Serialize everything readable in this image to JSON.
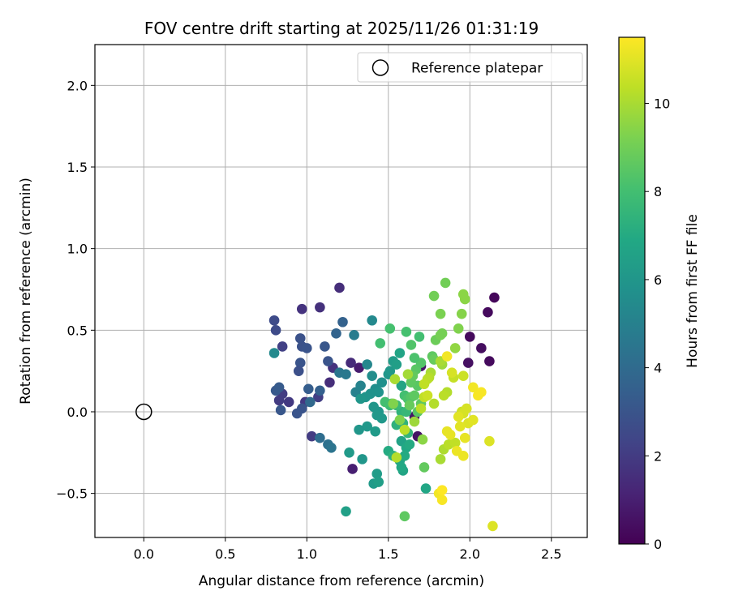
{
  "chart_data": {
    "type": "scatter",
    "title": "FOV centre drift starting at 2025/11/26 01:31:19",
    "xlabel": "Angular distance from reference (arcmin)",
    "ylabel": "Rotation from reference (arcmin)",
    "xlim": [
      -0.3,
      2.72
    ],
    "ylim": [
      -0.77,
      2.25
    ],
    "xticks": [
      0.0,
      0.5,
      1.0,
      1.5,
      2.0,
      2.5
    ],
    "xtick_labels": [
      "0.0",
      "0.5",
      "1.0",
      "1.5",
      "2.0",
      "2.5"
    ],
    "yticks": [
      -0.5,
      0.0,
      0.5,
      1.0,
      1.5,
      2.0
    ],
    "ytick_labels": [
      "−0.5",
      "0.0",
      "0.5",
      "1.0",
      "1.5",
      "2.0"
    ],
    "grid": true,
    "legend": {
      "position": "top-right",
      "entries": [
        "Reference platepar"
      ]
    },
    "reference_point": {
      "label": "Reference platepar",
      "x": 0.0,
      "y": 0.0
    },
    "colorbar": {
      "label": "Hours from first FF file",
      "colormap": "viridis",
      "range": [
        0,
        11.5
      ],
      "ticks": [
        0,
        2,
        4,
        6,
        8,
        10
      ],
      "tick_labels": [
        "0",
        "2",
        "4",
        "6",
        "8",
        "10"
      ]
    },
    "series": [
      {
        "name": "FOV centre",
        "points": [
          [
            2.15,
            0.7,
            0.2
          ],
          [
            2.11,
            0.61,
            0.3
          ],
          [
            2.12,
            0.31,
            0.3
          ],
          [
            2.07,
            0.39,
            0.4
          ],
          [
            2.0,
            0.46,
            0.3
          ],
          [
            1.99,
            0.3,
            0.5
          ],
          [
            1.7,
            0.28,
            0.6
          ],
          [
            1.68,
            -0.15,
            0.6
          ],
          [
            1.66,
            -0.03,
            0.7
          ],
          [
            1.32,
            0.27,
            0.9
          ],
          [
            1.28,
            -0.35,
            1.0
          ],
          [
            1.2,
            0.76,
            1.5
          ],
          [
            1.27,
            0.3,
            1.4
          ],
          [
            1.08,
            0.64,
            1.6
          ],
          [
            0.97,
            0.63,
            1.7
          ],
          [
            1.14,
            0.18,
            1.5
          ],
          [
            1.16,
            0.27,
            1.7
          ],
          [
            0.99,
            0.06,
            1.9
          ],
          [
            0.89,
            0.06,
            1.9
          ],
          [
            0.85,
            0.11,
            2.0
          ],
          [
            0.83,
            0.07,
            2.0
          ],
          [
            1.03,
            -0.15,
            2.0
          ],
          [
            1.07,
            0.09,
            2.1
          ],
          [
            0.85,
            0.4,
            2.2
          ],
          [
            0.8,
            0.56,
            2.6
          ],
          [
            0.81,
            0.5,
            2.6
          ],
          [
            0.96,
            0.45,
            2.9
          ],
          [
            0.97,
            0.4,
            2.9
          ],
          [
            1.0,
            0.39,
            3.0
          ],
          [
            1.11,
            0.4,
            3.1
          ],
          [
            0.96,
            0.3,
            3.0
          ],
          [
            0.95,
            0.25,
            2.8
          ],
          [
            1.13,
            0.31,
            3.0
          ],
          [
            0.94,
            -0.01,
            3.0
          ],
          [
            0.81,
            0.13,
            3.2
          ],
          [
            0.83,
            0.15,
            3.3
          ],
          [
            0.84,
            0.01,
            3.1
          ],
          [
            0.97,
            0.02,
            3.0
          ],
          [
            1.01,
            0.14,
            3.4
          ],
          [
            1.08,
            0.13,
            3.5
          ],
          [
            1.18,
            0.48,
            3.7
          ],
          [
            1.22,
            0.55,
            3.6
          ],
          [
            1.02,
            0.06,
            3.9
          ],
          [
            1.08,
            -0.16,
            4.1
          ],
          [
            1.13,
            -0.2,
            4.3
          ],
          [
            1.15,
            -0.22,
            4.4
          ],
          [
            1.2,
            0.24,
            4.5
          ],
          [
            1.24,
            0.23,
            4.6
          ],
          [
            1.29,
            0.47,
            4.8
          ],
          [
            1.3,
            0.12,
            5.0
          ],
          [
            1.33,
            0.16,
            5.1
          ],
          [
            1.37,
            0.29,
            5.3
          ],
          [
            1.4,
            0.56,
            5.4
          ],
          [
            0.8,
            0.36,
            5.4
          ],
          [
            1.4,
            0.22,
            5.6
          ],
          [
            1.42,
            0.14,
            5.6
          ],
          [
            1.39,
            0.11,
            5.8
          ],
          [
            1.44,
            0.12,
            5.8
          ],
          [
            1.46,
            0.18,
            5.7
          ],
          [
            1.36,
            0.09,
            5.9
          ],
          [
            1.33,
            0.08,
            6.0
          ],
          [
            1.41,
            0.03,
            6.0
          ],
          [
            1.44,
            0.0,
            6.0
          ],
          [
            1.46,
            -0.04,
            6.1
          ],
          [
            1.43,
            -0.02,
            6.1
          ],
          [
            1.37,
            -0.09,
            6.1
          ],
          [
            1.32,
            -0.11,
            6.0
          ],
          [
            1.34,
            -0.29,
            6.0
          ],
          [
            1.26,
            -0.25,
            6.2
          ],
          [
            1.42,
            -0.12,
            6.2
          ],
          [
            1.41,
            -0.44,
            6.2
          ],
          [
            1.43,
            -0.38,
            6.3
          ],
          [
            1.44,
            -0.43,
            6.4
          ],
          [
            1.24,
            -0.61,
            6.5
          ],
          [
            1.5,
            0.23,
            6.0
          ],
          [
            1.51,
            0.25,
            6.1
          ],
          [
            1.53,
            0.31,
            6.3
          ],
          [
            1.55,
            0.29,
            6.4
          ],
          [
            1.57,
            0.36,
            6.7
          ],
          [
            1.58,
            0.16,
            6.7
          ],
          [
            1.58,
            -0.18,
            6.6
          ],
          [
            1.59,
            -0.36,
            6.7
          ],
          [
            1.57,
            -0.3,
            6.8
          ],
          [
            1.61,
            -0.22,
            6.9
          ],
          [
            1.63,
            -0.2,
            7.0
          ],
          [
            1.6,
            -0.27,
            7.0
          ],
          [
            1.58,
            -0.34,
            6.9
          ],
          [
            1.73,
            -0.47,
            6.8
          ],
          [
            1.5,
            -0.24,
            7.0
          ],
          [
            1.53,
            -0.27,
            7.3
          ],
          [
            1.55,
            -0.08,
            7.3
          ],
          [
            1.59,
            -0.07,
            7.4
          ],
          [
            1.62,
            -0.13,
            7.5
          ],
          [
            1.58,
            0.0,
            7.4
          ],
          [
            1.61,
            0.0,
            7.6
          ],
          [
            1.55,
            0.04,
            7.7
          ],
          [
            1.51,
            0.04,
            7.8
          ],
          [
            1.48,
            0.06,
            8.0
          ],
          [
            1.52,
            0.05,
            8.0
          ],
          [
            1.6,
            0.1,
            8.0
          ],
          [
            1.62,
            0.08,
            8.2
          ],
          [
            1.64,
            0.09,
            8.4
          ],
          [
            1.66,
            0.1,
            8.6
          ],
          [
            1.68,
            0.0,
            8.5
          ],
          [
            1.7,
            0.05,
            8.6
          ],
          [
            1.68,
            0.16,
            8.5
          ],
          [
            1.67,
            0.26,
            8.5
          ],
          [
            1.7,
            0.3,
            8.4
          ],
          [
            1.66,
            0.33,
            8.2
          ],
          [
            1.64,
            0.41,
            8.3
          ],
          [
            1.61,
            0.49,
            8.1
          ],
          [
            1.51,
            0.51,
            8.1
          ],
          [
            1.69,
            0.46,
            8.0
          ],
          [
            1.45,
            0.42,
            8.0
          ],
          [
            1.64,
            0.18,
            8.6
          ],
          [
            1.65,
            0.22,
            8.7
          ],
          [
            1.63,
            0.04,
            8.8
          ],
          [
            1.72,
            -0.34,
            8.7
          ],
          [
            1.6,
            -0.64,
            8.6
          ],
          [
            1.77,
            0.34,
            8.6
          ],
          [
            1.78,
            0.32,
            8.8
          ],
          [
            1.79,
            0.44,
            8.9
          ],
          [
            1.82,
            0.47,
            9.1
          ],
          [
            1.83,
            0.48,
            9.1
          ],
          [
            1.78,
            0.71,
            9.0
          ],
          [
            1.82,
            0.6,
            9.2
          ],
          [
            1.85,
            0.79,
            9.0
          ],
          [
            1.93,
            0.51,
            9.3
          ],
          [
            1.95,
            0.6,
            9.4
          ],
          [
            1.96,
            0.72,
            9.5
          ],
          [
            1.97,
            0.69,
            9.5
          ],
          [
            1.91,
            0.39,
            9.6
          ],
          [
            1.83,
            0.29,
            9.8
          ],
          [
            1.82,
            0.31,
            10.0
          ],
          [
            1.76,
            0.24,
            10.0
          ],
          [
            1.75,
            0.21,
            10.2
          ],
          [
            1.74,
            0.2,
            10.3
          ],
          [
            1.72,
            0.17,
            10.4
          ],
          [
            1.78,
            0.05,
            10.2
          ],
          [
            1.72,
            0.09,
            10.4
          ],
          [
            1.74,
            0.1,
            10.6
          ],
          [
            1.7,
            0.02,
            10.3
          ],
          [
            1.86,
            0.12,
            10.2
          ],
          [
            1.84,
            0.1,
            10.3
          ],
          [
            1.82,
            -0.29,
            10.0
          ],
          [
            1.84,
            -0.23,
            10.1
          ],
          [
            1.87,
            -0.2,
            10.3
          ],
          [
            1.91,
            -0.19,
            10.4
          ],
          [
            1.9,
            0.21,
            10.5
          ],
          [
            1.96,
            0.22,
            10.6
          ],
          [
            1.89,
            0.24,
            10.8
          ],
          [
            1.95,
            0.0,
            10.6
          ],
          [
            1.96,
            -0.01,
            10.8
          ],
          [
            1.98,
            0.02,
            10.8
          ],
          [
            1.99,
            -0.07,
            10.9
          ],
          [
            2.02,
            -0.05,
            11.0
          ],
          [
            1.93,
            -0.03,
            11.0
          ],
          [
            1.94,
            -0.09,
            11.0
          ],
          [
            1.86,
            -0.12,
            11.1
          ],
          [
            1.88,
            -0.14,
            11.1
          ],
          [
            1.97,
            -0.16,
            11.1
          ],
          [
            1.92,
            -0.24,
            11.2
          ],
          [
            1.96,
            -0.27,
            11.2
          ],
          [
            1.81,
            -0.5,
            11.3
          ],
          [
            1.83,
            -0.54,
            11.4
          ],
          [
            1.83,
            -0.48,
            11.5
          ],
          [
            1.86,
            0.34,
            11.3
          ],
          [
            2.02,
            0.15,
            11.3
          ],
          [
            2.05,
            0.1,
            11.4
          ],
          [
            2.07,
            0.12,
            11.4
          ],
          [
            2.12,
            -0.18,
            10.9
          ],
          [
            2.14,
            -0.7,
            10.9
          ],
          [
            1.54,
            0.2,
            10.0
          ],
          [
            1.6,
            -0.11,
            10.3
          ],
          [
            1.55,
            -0.28,
            10.2
          ],
          [
            1.62,
            0.23,
            9.9
          ],
          [
            1.66,
            -0.06,
            9.8
          ],
          [
            1.71,
            -0.17,
            9.5
          ],
          [
            1.57,
            -0.05,
            9.3
          ],
          [
            1.53,
            0.05,
            9.3
          ]
        ]
      }
    ]
  }
}
